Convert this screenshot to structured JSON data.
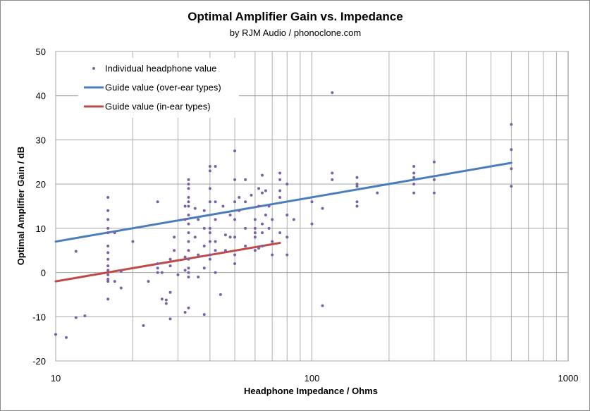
{
  "chart_data": {
    "type": "scatter",
    "title": "Optimal Amplifier Gain vs. Impedance",
    "subtitle": "by RJM Audio / phonoclone.com",
    "xlabel": "Headphone Impedance / Ohms",
    "ylabel": "Optimal Amplifier Gain / dB",
    "xscale": "log",
    "xlim": [
      10,
      1000
    ],
    "ylim": [
      -20,
      50
    ],
    "x_ticks": [
      "10",
      "100",
      "1000"
    ],
    "y_ticks": [
      "-20",
      "-10",
      "0",
      "10",
      "20",
      "30",
      "40",
      "50"
    ],
    "grid": true,
    "legend_position": "top-left",
    "series": [
      {
        "name": "Individual headphone value",
        "kind": "points",
        "color": "#7b61a8",
        "points": [
          [
            10,
            -14
          ],
          [
            11,
            -14.7
          ],
          [
            12,
            -10.2
          ],
          [
            12,
            4.8
          ],
          [
            13,
            -9.8
          ],
          [
            16,
            17
          ],
          [
            16,
            14
          ],
          [
            16,
            12
          ],
          [
            16,
            10
          ],
          [
            16,
            9
          ],
          [
            16,
            6
          ],
          [
            16,
            4.5
          ],
          [
            16,
            3
          ],
          [
            16,
            1.5
          ],
          [
            16,
            0.5
          ],
          [
            16,
            -0.5
          ],
          [
            16,
            -1.5
          ],
          [
            16,
            -2
          ],
          [
            16,
            -6
          ],
          [
            17,
            9
          ],
          [
            17,
            -2
          ],
          [
            18,
            -3.5
          ],
          [
            18,
            0.3
          ],
          [
            20,
            7
          ],
          [
            22,
            -12
          ],
          [
            23,
            -2
          ],
          [
            25,
            16
          ],
          [
            25,
            2
          ],
          [
            25,
            1
          ],
          [
            25,
            0
          ],
          [
            26,
            -6
          ],
          [
            26,
            0
          ],
          [
            27,
            -7
          ],
          [
            27,
            -6.2
          ],
          [
            28,
            -4.5
          ],
          [
            28,
            -10.5
          ],
          [
            28,
            3
          ],
          [
            28,
            1.5
          ],
          [
            29,
            5
          ],
          [
            29,
            8
          ],
          [
            30,
            -0.5
          ],
          [
            32,
            12
          ],
          [
            32,
            15
          ],
          [
            32,
            3.5
          ],
          [
            32,
            -9
          ],
          [
            32,
            0.5
          ],
          [
            33,
            21
          ],
          [
            33,
            19
          ],
          [
            33,
            17
          ],
          [
            33,
            15
          ],
          [
            33,
            13
          ],
          [
            33,
            11
          ],
          [
            33,
            9
          ],
          [
            33,
            7
          ],
          [
            33,
            5
          ],
          [
            33,
            3
          ],
          [
            33,
            1
          ],
          [
            33,
            0
          ],
          [
            33,
            -1
          ],
          [
            33,
            -8
          ],
          [
            33,
            20
          ],
          [
            33,
            16
          ],
          [
            35,
            14.5
          ],
          [
            35,
            8
          ],
          [
            36,
            4
          ],
          [
            36,
            12
          ],
          [
            36,
            -1
          ],
          [
            38,
            6
          ],
          [
            38,
            1
          ],
          [
            38,
            -9.5
          ],
          [
            38,
            10
          ],
          [
            38,
            14
          ],
          [
            40,
            24
          ],
          [
            40,
            23
          ],
          [
            40,
            19
          ],
          [
            40,
            16
          ],
          [
            40,
            10
          ],
          [
            40,
            9
          ],
          [
            40,
            7
          ],
          [
            40,
            4
          ],
          [
            40,
            3
          ],
          [
            42,
            24
          ],
          [
            42,
            16
          ],
          [
            42,
            12
          ],
          [
            42,
            7
          ],
          [
            42,
            5
          ],
          [
            42,
            0
          ],
          [
            44,
            -5
          ],
          [
            45,
            15
          ],
          [
            46,
            8.5
          ],
          [
            46,
            5
          ],
          [
            48,
            8
          ],
          [
            48,
            13
          ],
          [
            50,
            27.5
          ],
          [
            50,
            21
          ],
          [
            50,
            16
          ],
          [
            50,
            12
          ],
          [
            50,
            8
          ],
          [
            50,
            4
          ],
          [
            50,
            2
          ],
          [
            52,
            17
          ],
          [
            52,
            14
          ],
          [
            55,
            21
          ],
          [
            55,
            16
          ],
          [
            55,
            10
          ],
          [
            55,
            6
          ],
          [
            58,
            17.5
          ],
          [
            60,
            12
          ],
          [
            60,
            10
          ],
          [
            60,
            9
          ],
          [
            60,
            8
          ],
          [
            60,
            5
          ],
          [
            62,
            19
          ],
          [
            62,
            15
          ],
          [
            62,
            5.5
          ],
          [
            64,
            22
          ],
          [
            64,
            18
          ],
          [
            64,
            11
          ],
          [
            64,
            9
          ],
          [
            64,
            6
          ],
          [
            66,
            18.5
          ],
          [
            66,
            13
          ],
          [
            68,
            15
          ],
          [
            68,
            10
          ],
          [
            70,
            12
          ],
          [
            70,
            7
          ],
          [
            70,
            4
          ],
          [
            75,
            22.5
          ],
          [
            75,
            21
          ],
          [
            75,
            18.5
          ],
          [
            75,
            17
          ],
          [
            75,
            9
          ],
          [
            80,
            20
          ],
          [
            80,
            13
          ],
          [
            80,
            8
          ],
          [
            80,
            4
          ],
          [
            85,
            12
          ],
          [
            100,
            16
          ],
          [
            100,
            11
          ],
          [
            110,
            14.5
          ],
          [
            110,
            -7.5
          ],
          [
            120,
            40.7
          ],
          [
            120,
            22.5
          ],
          [
            120,
            21
          ],
          [
            150,
            21.5
          ],
          [
            150,
            20
          ],
          [
            150,
            19.5
          ],
          [
            150,
            16
          ],
          [
            150,
            15
          ],
          [
            180,
            18
          ],
          [
            250,
            24
          ],
          [
            250,
            22.5
          ],
          [
            250,
            21.5
          ],
          [
            250,
            20
          ],
          [
            250,
            18
          ],
          [
            300,
            25
          ],
          [
            300,
            21
          ],
          [
            300,
            18
          ],
          [
            600,
            33.5
          ],
          [
            600,
            27.8
          ],
          [
            600,
            23.5
          ],
          [
            600,
            19.5
          ]
        ]
      },
      {
        "name": "Guide value (over-ear types)",
        "kind": "line",
        "color": "#4a7ebb",
        "points": [
          [
            10,
            7
          ],
          [
            600,
            24.8
          ]
        ]
      },
      {
        "name": "Guide value (in-ear types)",
        "kind": "line",
        "color": "#be4b48",
        "points": [
          [
            10,
            -2
          ],
          [
            75,
            6.7
          ]
        ]
      }
    ]
  }
}
